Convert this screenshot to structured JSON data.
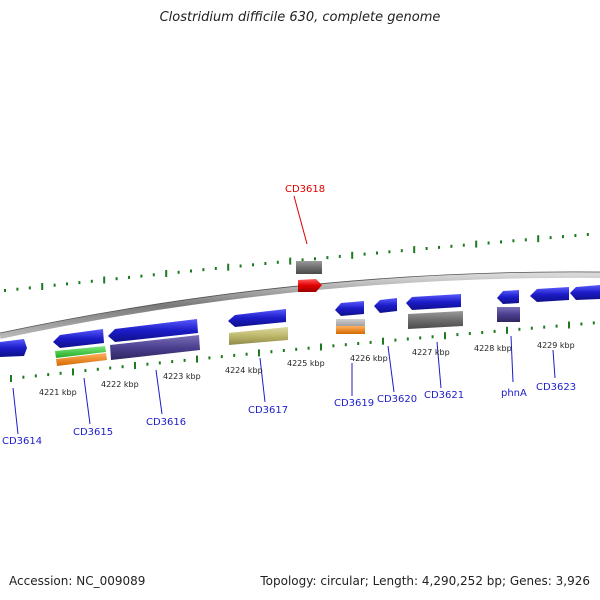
{
  "title": "Clostridium difficile 630, complete genome",
  "footer": {
    "accession": "Accession: NC_009089",
    "summary": "Topology: circular; Length: 4,290,252 bp; Genes: 3,926"
  },
  "kbp_labels": [
    "4221 kbp",
    "4222 kbp",
    "4223 kbp",
    "4224 kbp",
    "4225 kbp",
    "4226 kbp",
    "4227 kbp",
    "4228 kbp",
    "4229 kbp"
  ],
  "genes": [
    "CD3614",
    "CD3615",
    "CD3616",
    "CD3617",
    "CD3618",
    "CD3619",
    "CD3620",
    "CD3621",
    "phnA",
    "CD3623"
  ],
  "colors": {
    "backbone": "#8a8a8a",
    "ticks": "#1f7a1f",
    "gene_blue": "#1c1cc8",
    "gene_red": "#e00000",
    "gene_label": "#1c1cc8",
    "highlight_label": "#e00000",
    "feature_green": "#33cc33",
    "feature_orange": "#f08a1c",
    "feature_navy": "#4b3f8f",
    "feature_gray": "#6e6e6e",
    "feature_khaki": "#bdb76b"
  }
}
